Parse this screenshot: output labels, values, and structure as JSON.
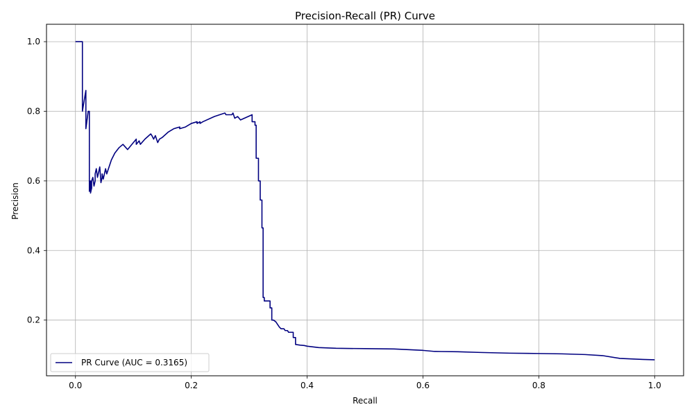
{
  "chart_data": {
    "type": "line",
    "title": "Precision-Recall (PR) Curve",
    "xlabel": "Recall",
    "ylabel": "Precision",
    "xlim": [
      -0.05,
      1.05
    ],
    "ylim": [
      0.04,
      1.05
    ],
    "xticks": [
      0.0,
      0.2,
      0.4,
      0.6,
      0.8,
      1.0
    ],
    "xtick_labels": [
      "0.0",
      "0.2",
      "0.4",
      "0.6",
      "0.8",
      "1.0"
    ],
    "yticks": [
      0.2,
      0.4,
      0.6,
      0.8,
      1.0
    ],
    "ytick_labels": [
      "0.2",
      "0.4",
      "0.6",
      "0.8",
      "1.0"
    ],
    "grid": true,
    "legend_position": "lower-left",
    "series": [
      {
        "name": "PR Curve (AUC = 0.3165)",
        "color": "#000080",
        "x": [
          0.0,
          0.012,
          0.012,
          0.012,
          0.018,
          0.018,
          0.022,
          0.024,
          0.024,
          0.026,
          0.026,
          0.028,
          0.028,
          0.03,
          0.032,
          0.034,
          0.034,
          0.036,
          0.038,
          0.04,
          0.042,
          0.044,
          0.046,
          0.046,
          0.048,
          0.05,
          0.052,
          0.054,
          0.058,
          0.062,
          0.068,
          0.075,
          0.082,
          0.09,
          0.09,
          0.1,
          0.105,
          0.105,
          0.11,
          0.112,
          0.12,
          0.13,
          0.132,
          0.135,
          0.138,
          0.14,
          0.142,
          0.145,
          0.15,
          0.16,
          0.17,
          0.18,
          0.18,
          0.19,
          0.2,
          0.21,
          0.21,
          0.215,
          0.215,
          0.22,
          0.24,
          0.258,
          0.26,
          0.262,
          0.27,
          0.272,
          0.275,
          0.28,
          0.28,
          0.285,
          0.305,
          0.305,
          0.31,
          0.31,
          0.312,
          0.312,
          0.316,
          0.316,
          0.319,
          0.319,
          0.322,
          0.322,
          0.324,
          0.324,
          0.326,
          0.326,
          0.33,
          0.336,
          0.336,
          0.339,
          0.339,
          0.342,
          0.342,
          0.346,
          0.35,
          0.352,
          0.355,
          0.358,
          0.36,
          0.362,
          0.366,
          0.368,
          0.37,
          0.376,
          0.376,
          0.38,
          0.38,
          0.388,
          0.395,
          0.4,
          0.41,
          0.42,
          0.45,
          0.5,
          0.55,
          0.6,
          0.62,
          0.66,
          0.7,
          0.75,
          0.8,
          0.84,
          0.88,
          0.91,
          0.94,
          0.98,
          1.0
        ],
        "y": [
          1.0,
          1.0,
          0.8,
          0.8,
          0.86,
          0.75,
          0.8,
          0.8,
          0.57,
          0.6,
          0.565,
          0.58,
          0.6,
          0.61,
          0.585,
          0.6,
          0.62,
          0.635,
          0.61,
          0.625,
          0.64,
          0.595,
          0.61,
          0.62,
          0.605,
          0.62,
          0.635,
          0.62,
          0.64,
          0.66,
          0.68,
          0.695,
          0.705,
          0.69,
          0.69,
          0.71,
          0.72,
          0.705,
          0.715,
          0.705,
          0.72,
          0.735,
          0.73,
          0.72,
          0.73,
          0.72,
          0.71,
          0.72,
          0.725,
          0.74,
          0.75,
          0.755,
          0.75,
          0.755,
          0.765,
          0.77,
          0.765,
          0.77,
          0.765,
          0.77,
          0.785,
          0.795,
          0.79,
          0.79,
          0.79,
          0.795,
          0.78,
          0.785,
          0.785,
          0.775,
          0.79,
          0.77,
          0.77,
          0.76,
          0.76,
          0.665,
          0.665,
          0.6,
          0.6,
          0.545,
          0.545,
          0.465,
          0.465,
          0.265,
          0.265,
          0.255,
          0.255,
          0.255,
          0.235,
          0.235,
          0.2,
          0.2,
          0.2,
          0.195,
          0.185,
          0.18,
          0.175,
          0.175,
          0.175,
          0.17,
          0.17,
          0.165,
          0.165,
          0.165,
          0.15,
          0.15,
          0.13,
          0.128,
          0.127,
          0.125,
          0.123,
          0.121,
          0.119,
          0.118,
          0.117,
          0.113,
          0.11,
          0.109,
          0.107,
          0.105,
          0.104,
          0.103,
          0.101,
          0.098,
          0.09,
          0.087,
          0.086
        ]
      }
    ]
  }
}
